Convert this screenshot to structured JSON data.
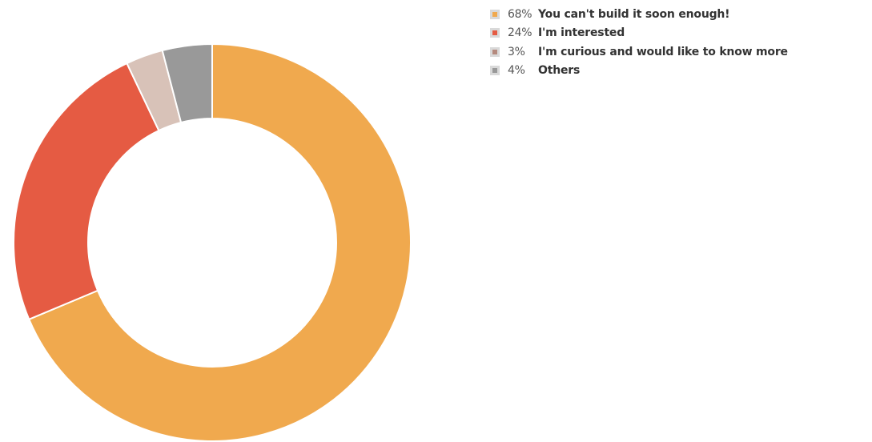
{
  "chart_data": {
    "type": "pie",
    "variant": "donut",
    "slices": [
      {
        "pct_label": "68%",
        "label": "You can't build it soon enough!",
        "value": 68,
        "color": "#f0a94e"
      },
      {
        "pct_label": "24%",
        "label": "I'm interested",
        "value": 24,
        "color": "#e55b43"
      },
      {
        "pct_label": "3%",
        "label": "I'm curious and would like to know more",
        "value": 3,
        "color": "#d8c2b8"
      },
      {
        "pct_label": "4%",
        "label": "Others",
        "value": 4,
        "color": "#999999"
      }
    ],
    "legend_swatch_colors": [
      "#f0a94e",
      "#e55b43",
      "#b58a7e",
      "#999999"
    ],
    "legend_position": "top-right",
    "start_angle_deg": 0,
    "direction": "clockwise"
  }
}
